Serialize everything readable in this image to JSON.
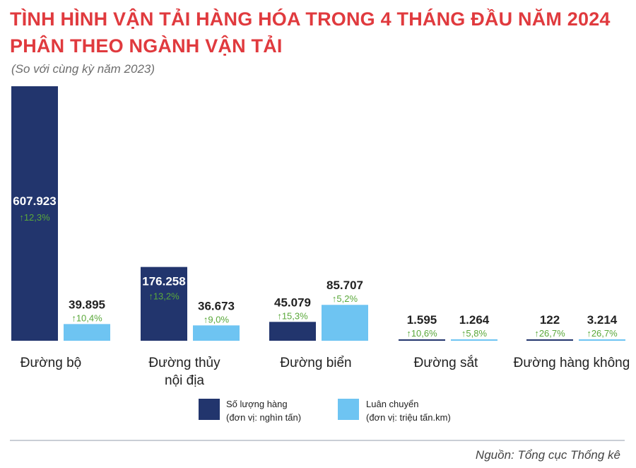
{
  "header": {
    "title_line1": "TÌNH HÌNH VẬN TẢI HÀNG HÓA TRONG 4 THÁNG ĐẦU NĂM 2024",
    "title_line2": "PHÂN THEO NGÀNH VẬN TẢI",
    "subtitle": "(So với cùng kỳ năm 2023)"
  },
  "legend": {
    "quantity_label": "Số lượng hàng",
    "quantity_unit": "(đơn vị: nghìn tấn)",
    "rotation_label": "Luân chuyển",
    "rotation_unit": "(đơn vị: triệu tấn.km)"
  },
  "source": "Nguồn: Tổng cục Thống kê",
  "colors": {
    "title": "#e03a3e",
    "quantity": "#22356d",
    "rotation": "#6ec4f2",
    "growth": "#5aa83a"
  },
  "chart_data": {
    "type": "bar",
    "categories": [
      "Đường bộ",
      "Đường thủy\nnội địa",
      "Đường biển",
      "Đường sắt",
      "Đường hàng không"
    ],
    "series": [
      {
        "name": "Số lượng hàng",
        "values": [
          607923,
          176258,
          45079,
          1595,
          122
        ],
        "labels": [
          "607.923",
          "176.258",
          "45.079",
          "1.595",
          "122"
        ],
        "growth": [
          "12,3%",
          "13,2%",
          "15,3%",
          "10,6%",
          "26,7%"
        ]
      },
      {
        "name": "Luân chuyển",
        "values": [
          39895,
          36673,
          85707,
          1264,
          3214
        ],
        "labels": [
          "39.895",
          "36.673",
          "85.707",
          "1.264",
          "3.214"
        ],
        "growth": [
          "10,4%",
          "9,0%",
          "5,2%",
          "5,8%",
          "26,7%"
        ]
      }
    ]
  }
}
